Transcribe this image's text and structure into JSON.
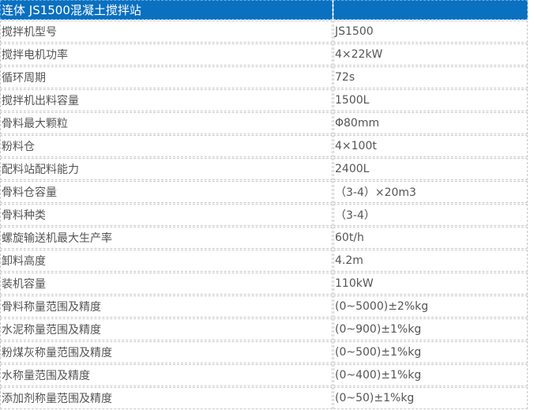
{
  "header": {
    "title": "连体 JS1500混凝土搅拌站",
    "value": ""
  },
  "colors": {
    "header_bg": "#0a70c0"
  },
  "rows": [
    {
      "label": "搅拌机型号",
      "value": "JS1500"
    },
    {
      "label": "搅拌电机功率",
      "value": "4×22kW"
    },
    {
      "label": "循环周期",
      "value": "72s"
    },
    {
      "label": "搅拌机出料容量",
      "value": "1500L"
    },
    {
      "label": "骨料最大颗粒",
      "value": "Φ80mm"
    },
    {
      "label": "粉料仓",
      "value": "4×100t"
    },
    {
      "label": "配料站配料能力",
      "value": "2400L"
    },
    {
      "label": "骨料仓容量",
      "value": "（3-4）×20m3"
    },
    {
      "label": "骨料种类",
      "value": "（3-4）"
    },
    {
      "label": "螺旋输送机最大生产率",
      "value": "60t/h"
    },
    {
      "label": "卸料高度",
      "value": "4.2m"
    },
    {
      "label": "装机容量",
      "value": "110kW"
    },
    {
      "label": "骨料称量范围及精度",
      "value": "(0~5000)±2%kg"
    },
    {
      "label": "水泥称量范围及精度",
      "value": "(0~900)±1%kg"
    },
    {
      "label": "粉煤灰称量范围及精度",
      "value": "(0~500)±1%kg"
    },
    {
      "label": "水称量范围及精度",
      "value": "(0~400)±1%kg"
    },
    {
      "label": "添加剂称量范围及精度",
      "value": "(0~50)±1%kg"
    }
  ]
}
